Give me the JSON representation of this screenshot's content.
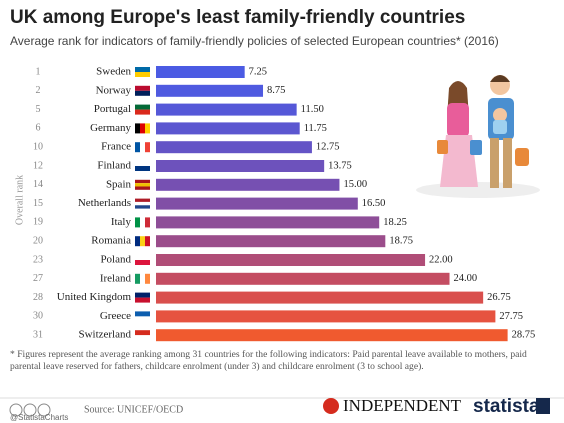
{
  "chart_data": {
    "type": "bar",
    "title": "UK among Europe's least family-friendly countries",
    "subtitle": "Average rank for indicators of family-friendly policies of selected European countries* (2016)",
    "y_label": "Overall rank",
    "ranks": [
      "1",
      "2",
      "5",
      "6",
      "10",
      "12",
      "14",
      "15",
      "19",
      "20",
      "23",
      "27",
      "28",
      "30",
      "31"
    ],
    "categories": [
      "Sweden",
      "Norway",
      "Portugal",
      "Germany",
      "France",
      "Finland",
      "Spain",
      "Netherlands",
      "Italy",
      "Romania",
      "Poland",
      "Ireland",
      "United Kingdom",
      "Greece",
      "Switzerland"
    ],
    "values": [
      7.25,
      8.75,
      11.5,
      11.75,
      12.75,
      13.75,
      15,
      16.5,
      18.25,
      18.75,
      22,
      24,
      26.75,
      27.75,
      28.75
    ],
    "value_labels": [
      "7.25",
      "8.75",
      "11.50",
      "11.75",
      "12.75",
      "13.75",
      "15.00",
      "16.50",
      "18.25",
      "18.75",
      "22.00",
      "24.00",
      "26.75",
      "27.75",
      "28.75"
    ],
    "colors": [
      "#4b5be3",
      "#4f5ae0",
      "#5558d8",
      "#5b56d0",
      "#6454c6",
      "#6d52bc",
      "#7650b2",
      "#814fa6",
      "#8e4e98",
      "#9b4d8b",
      "#b04d77",
      "#c44d62",
      "#d94f4d",
      "#e65340",
      "#f05a2f"
    ],
    "footnote": "* Figures represent the average ranking among 31 countries for the following indicators: Paid parental leave available to mothers, paid parental leave reserved for fathers, childcare enrolment (under 3) and childcare enrolment (3 to school age).",
    "handle": "@StatistaCharts",
    "source": "Source: UNICEF/OECD",
    "publisher": "INDEPENDENT",
    "brand": "statista"
  }
}
